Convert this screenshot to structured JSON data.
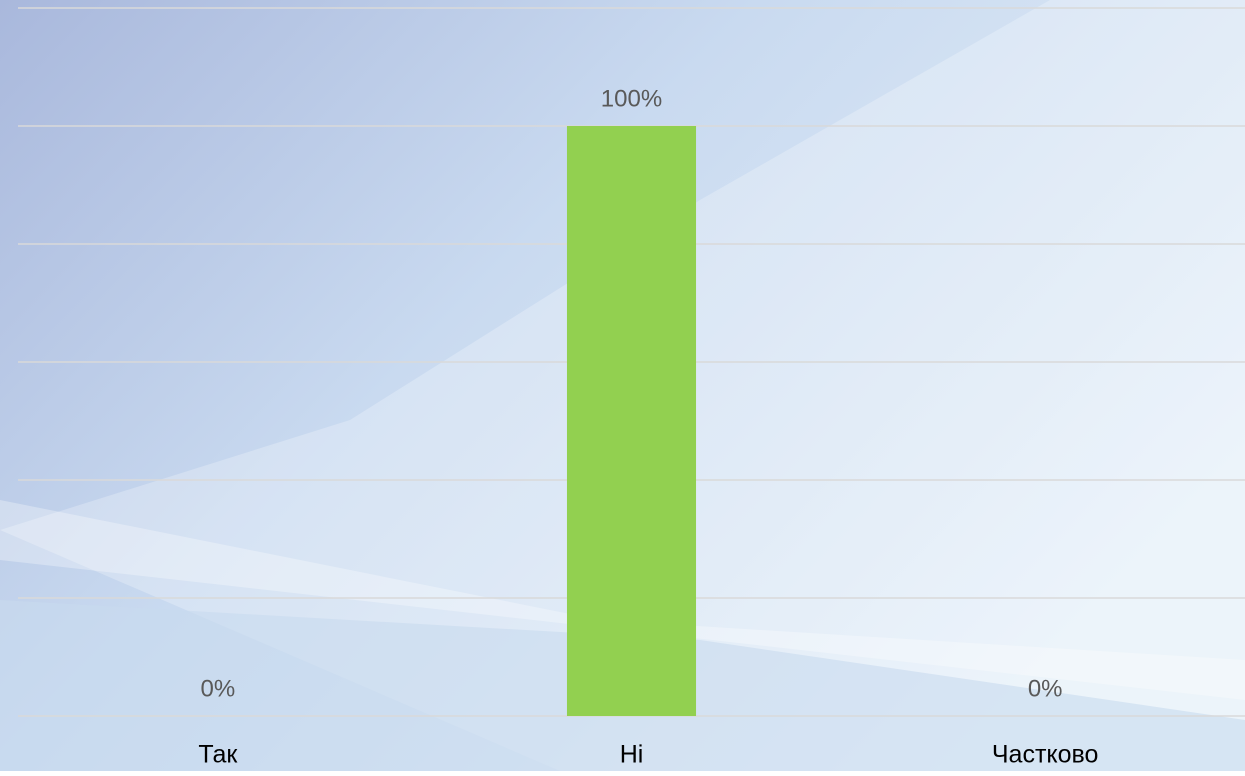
{
  "chart_data": {
    "type": "bar",
    "categories": [
      "Так",
      "Ні",
      "Частково"
    ],
    "values": [
      0,
      100,
      0
    ],
    "value_labels": [
      "0%",
      "100%",
      "0%"
    ],
    "color": "#92d050",
    "ylim": [
      0,
      120
    ],
    "yticks": [
      0,
      20,
      40,
      60,
      80,
      100,
      120
    ],
    "grid": true
  }
}
